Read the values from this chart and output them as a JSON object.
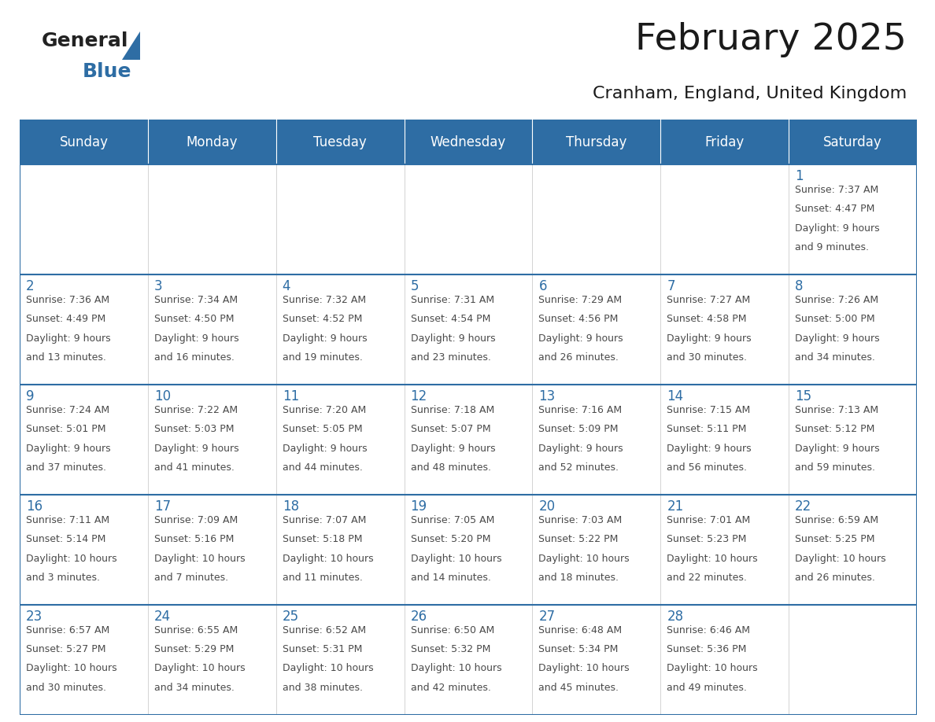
{
  "title": "February 2025",
  "subtitle": "Cranham, England, United Kingdom",
  "days_of_week": [
    "Sunday",
    "Monday",
    "Tuesday",
    "Wednesday",
    "Thursday",
    "Friday",
    "Saturday"
  ],
  "header_bg": "#2E6DA4",
  "header_text": "#FFFFFF",
  "cell_bg": "#FFFFFF",
  "day_number_color": "#2E6DA4",
  "info_text_color": "#4a4a4a",
  "row_border_color": "#2E6DA4",
  "col_border_color": "#CCCCCC",
  "calendar_data": [
    [
      null,
      null,
      null,
      null,
      null,
      null,
      {
        "day": 1,
        "sunrise": "7:37 AM",
        "sunset": "4:47 PM",
        "daylight_line1": "9 hours",
        "daylight_line2": "and 9 minutes."
      }
    ],
    [
      {
        "day": 2,
        "sunrise": "7:36 AM",
        "sunset": "4:49 PM",
        "daylight_line1": "9 hours",
        "daylight_line2": "and 13 minutes."
      },
      {
        "day": 3,
        "sunrise": "7:34 AM",
        "sunset": "4:50 PM",
        "daylight_line1": "9 hours",
        "daylight_line2": "and 16 minutes."
      },
      {
        "day": 4,
        "sunrise": "7:32 AM",
        "sunset": "4:52 PM",
        "daylight_line1": "9 hours",
        "daylight_line2": "and 19 minutes."
      },
      {
        "day": 5,
        "sunrise": "7:31 AM",
        "sunset": "4:54 PM",
        "daylight_line1": "9 hours",
        "daylight_line2": "and 23 minutes."
      },
      {
        "day": 6,
        "sunrise": "7:29 AM",
        "sunset": "4:56 PM",
        "daylight_line1": "9 hours",
        "daylight_line2": "and 26 minutes."
      },
      {
        "day": 7,
        "sunrise": "7:27 AM",
        "sunset": "4:58 PM",
        "daylight_line1": "9 hours",
        "daylight_line2": "and 30 minutes."
      },
      {
        "day": 8,
        "sunrise": "7:26 AM",
        "sunset": "5:00 PM",
        "daylight_line1": "9 hours",
        "daylight_line2": "and 34 minutes."
      }
    ],
    [
      {
        "day": 9,
        "sunrise": "7:24 AM",
        "sunset": "5:01 PM",
        "daylight_line1": "9 hours",
        "daylight_line2": "and 37 minutes."
      },
      {
        "day": 10,
        "sunrise": "7:22 AM",
        "sunset": "5:03 PM",
        "daylight_line1": "9 hours",
        "daylight_line2": "and 41 minutes."
      },
      {
        "day": 11,
        "sunrise": "7:20 AM",
        "sunset": "5:05 PM",
        "daylight_line1": "9 hours",
        "daylight_line2": "and 44 minutes."
      },
      {
        "day": 12,
        "sunrise": "7:18 AM",
        "sunset": "5:07 PM",
        "daylight_line1": "9 hours",
        "daylight_line2": "and 48 minutes."
      },
      {
        "day": 13,
        "sunrise": "7:16 AM",
        "sunset": "5:09 PM",
        "daylight_line1": "9 hours",
        "daylight_line2": "and 52 minutes."
      },
      {
        "day": 14,
        "sunrise": "7:15 AM",
        "sunset": "5:11 PM",
        "daylight_line1": "9 hours",
        "daylight_line2": "and 56 minutes."
      },
      {
        "day": 15,
        "sunrise": "7:13 AM",
        "sunset": "5:12 PM",
        "daylight_line1": "9 hours",
        "daylight_line2": "and 59 minutes."
      }
    ],
    [
      {
        "day": 16,
        "sunrise": "7:11 AM",
        "sunset": "5:14 PM",
        "daylight_line1": "10 hours",
        "daylight_line2": "and 3 minutes."
      },
      {
        "day": 17,
        "sunrise": "7:09 AM",
        "sunset": "5:16 PM",
        "daylight_line1": "10 hours",
        "daylight_line2": "and 7 minutes."
      },
      {
        "day": 18,
        "sunrise": "7:07 AM",
        "sunset": "5:18 PM",
        "daylight_line1": "10 hours",
        "daylight_line2": "and 11 minutes."
      },
      {
        "day": 19,
        "sunrise": "7:05 AM",
        "sunset": "5:20 PM",
        "daylight_line1": "10 hours",
        "daylight_line2": "and 14 minutes."
      },
      {
        "day": 20,
        "sunrise": "7:03 AM",
        "sunset": "5:22 PM",
        "daylight_line1": "10 hours",
        "daylight_line2": "and 18 minutes."
      },
      {
        "day": 21,
        "sunrise": "7:01 AM",
        "sunset": "5:23 PM",
        "daylight_line1": "10 hours",
        "daylight_line2": "and 22 minutes."
      },
      {
        "day": 22,
        "sunrise": "6:59 AM",
        "sunset": "5:25 PM",
        "daylight_line1": "10 hours",
        "daylight_line2": "and 26 minutes."
      }
    ],
    [
      {
        "day": 23,
        "sunrise": "6:57 AM",
        "sunset": "5:27 PM",
        "daylight_line1": "10 hours",
        "daylight_line2": "and 30 minutes."
      },
      {
        "day": 24,
        "sunrise": "6:55 AM",
        "sunset": "5:29 PM",
        "daylight_line1": "10 hours",
        "daylight_line2": "and 34 minutes."
      },
      {
        "day": 25,
        "sunrise": "6:52 AM",
        "sunset": "5:31 PM",
        "daylight_line1": "10 hours",
        "daylight_line2": "and 38 minutes."
      },
      {
        "day": 26,
        "sunrise": "6:50 AM",
        "sunset": "5:32 PM",
        "daylight_line1": "10 hours",
        "daylight_line2": "and 42 minutes."
      },
      {
        "day": 27,
        "sunrise": "6:48 AM",
        "sunset": "5:34 PM",
        "daylight_line1": "10 hours",
        "daylight_line2": "and 45 minutes."
      },
      {
        "day": 28,
        "sunrise": "6:46 AM",
        "sunset": "5:36 PM",
        "daylight_line1": "10 hours",
        "daylight_line2": "and 49 minutes."
      },
      null
    ]
  ],
  "title_fontsize": 34,
  "subtitle_fontsize": 16,
  "header_fontsize": 12,
  "day_num_fontsize": 12,
  "info_fontsize": 9
}
